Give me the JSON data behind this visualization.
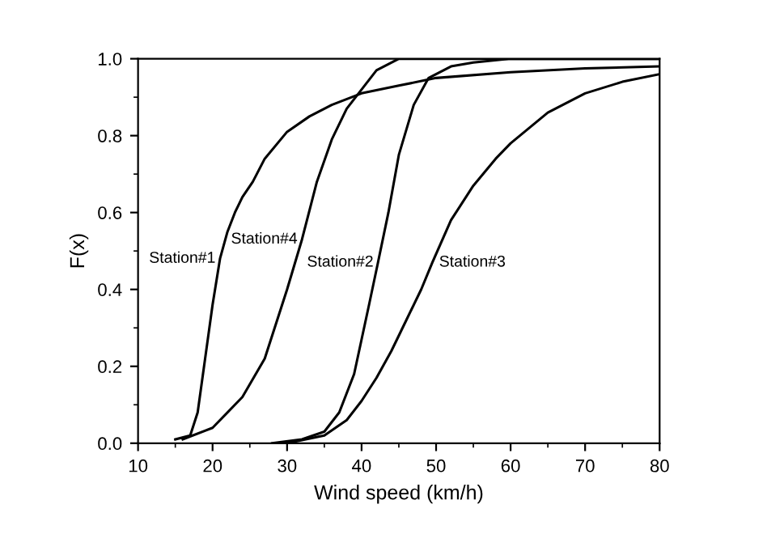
{
  "chart_data": {
    "type": "line",
    "xlabel": "Wind speed (km/h)",
    "ylabel": "F(x)",
    "xlim": [
      10,
      80
    ],
    "ylim": [
      0,
      1
    ],
    "xticks": [
      10,
      20,
      30,
      40,
      50,
      60,
      70,
      80
    ],
    "yticks": [
      {
        "value": 0,
        "label": "0.0"
      },
      0.2,
      0.4,
      0.6,
      0.8,
      {
        "value": 1,
        "label": "1.0"
      }
    ],
    "grid": false,
    "legend": false,
    "marker": "none",
    "line_style": "solid",
    "series": [
      {
        "name": "Station#1",
        "color": "#000000",
        "x": [
          15,
          17,
          18,
          19,
          20,
          21,
          22,
          23,
          24,
          25.4,
          27,
          30,
          33,
          36,
          40,
          45,
          50,
          60,
          70,
          80
        ],
        "values": [
          0.01,
          0.02,
          0.08,
          0.22,
          0.36,
          0.48,
          0.55,
          0.6,
          0.64,
          0.68,
          0.74,
          0.81,
          0.85,
          0.88,
          0.91,
          0.93,
          0.95,
          0.965,
          0.975,
          0.98
        ]
      },
      {
        "name": "Station#4",
        "color": "#000000",
        "x": [
          16,
          20,
          24,
          27,
          30,
          32,
          34,
          36,
          38,
          40,
          42,
          45,
          50,
          60,
          80
        ],
        "values": [
          0.01,
          0.04,
          0.12,
          0.22,
          0.4,
          0.53,
          0.68,
          0.79,
          0.87,
          0.92,
          0.97,
          1.0,
          1.0,
          1.0,
          1.0
        ]
      },
      {
        "name": "Station#2",
        "color": "#000000",
        "x": [
          28,
          32,
          35,
          37,
          39,
          40,
          41,
          42.2,
          43.6,
          45,
          47,
          49,
          52,
          55,
          60,
          80
        ],
        "values": [
          0,
          0.01,
          0.03,
          0.08,
          0.18,
          0.27,
          0.36,
          0.47,
          0.6,
          0.75,
          0.88,
          0.95,
          0.98,
          0.99,
          1.0,
          1.0
        ]
      },
      {
        "name": "Station#3",
        "color": "#000000",
        "x": [
          30,
          35,
          38,
          40,
          42,
          44,
          46,
          48,
          49.5,
          52,
          55,
          58,
          60,
          65,
          70,
          75,
          80
        ],
        "values": [
          0,
          0.02,
          0.06,
          0.11,
          0.17,
          0.24,
          0.32,
          0.4,
          0.47,
          0.58,
          0.67,
          0.74,
          0.78,
          0.86,
          0.91,
          0.94,
          0.96
        ]
      }
    ]
  }
}
